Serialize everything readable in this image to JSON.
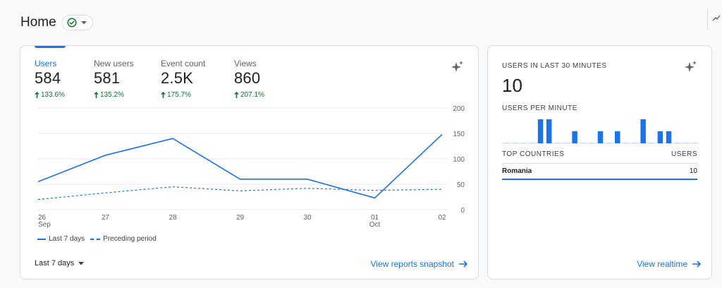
{
  "header": {
    "title": "Home"
  },
  "metrics": [
    {
      "label": "Users",
      "value": "584",
      "change": "133.6%"
    },
    {
      "label": "New users",
      "value": "581",
      "change": "135.2%"
    },
    {
      "label": "Event count",
      "value": "2.5K",
      "change": "175.7%"
    },
    {
      "label": "Views",
      "value": "860",
      "change": "207.1%"
    }
  ],
  "chart_data": {
    "type": "line",
    "categories": [
      "26\nSep",
      "27",
      "28",
      "29",
      "30",
      "01\nOct",
      "02"
    ],
    "x_labels": [
      {
        "day": "26",
        "month": "Sep"
      },
      {
        "day": "27",
        "month": ""
      },
      {
        "day": "28",
        "month": ""
      },
      {
        "day": "29",
        "month": ""
      },
      {
        "day": "30",
        "month": ""
      },
      {
        "day": "01",
        "month": "Oct"
      },
      {
        "day": "02",
        "month": ""
      }
    ],
    "series": [
      {
        "name": "Last 7 days",
        "values": [
          55,
          107,
          140,
          60,
          60,
          23,
          148
        ],
        "style": "solid"
      },
      {
        "name": "Preceding period",
        "values": [
          20,
          33,
          45,
          37,
          42,
          38,
          40
        ],
        "style": "dashed"
      }
    ],
    "y_ticks": [
      0,
      50,
      100,
      150,
      200
    ],
    "ylim": [
      0,
      200
    ],
    "colors": {
      "line": "#1a73e8",
      "grid": "#e8eaed"
    }
  },
  "legend": {
    "current": "Last 7 days",
    "previous": "Preceding period"
  },
  "footer": {
    "date_range": "Last 7 days",
    "view_reports": "View reports snapshot"
  },
  "realtime": {
    "title": "USERS IN LAST 30 MINUTES",
    "value": "10",
    "per_minute_label": "USERS PER MINUTE",
    "per_minute_values": [
      0,
      0,
      0,
      0,
      2,
      2,
      0,
      0,
      1,
      0,
      0,
      1,
      0,
      1,
      0,
      0,
      2,
      0,
      1,
      1,
      0,
      0,
      0
    ],
    "countries_header": "TOP COUNTRIES",
    "users_header": "USERS",
    "countries": [
      {
        "name": "Romania",
        "users": "10"
      }
    ],
    "view_realtime": "View realtime"
  },
  "colors": {
    "accent": "#1a73e8",
    "positive": "#137333"
  }
}
